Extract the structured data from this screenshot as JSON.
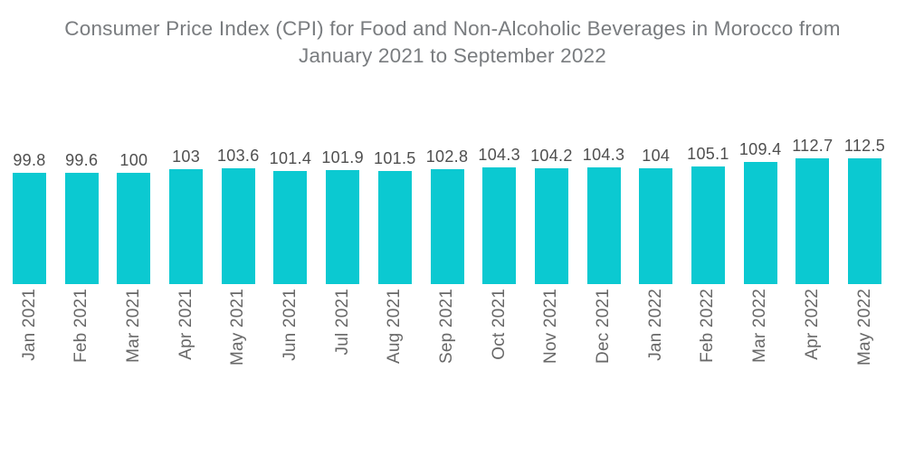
{
  "title": {
    "line1": "Consumer Price Index (CPI) for Food and Non-Alcoholic Beverages in Morocco from",
    "line2": "January 2021 to September 2022"
  },
  "colors": {
    "bar": "#0bc9d1",
    "title_text": "#797c7f",
    "value_label": "#4f4f4f",
    "month_label": "#686868",
    "background": "#ffffff"
  },
  "chart_data": {
    "type": "bar",
    "title": "Consumer Price Index (CPI) for Food and Non-Alcoholic Beverages in Morocco from January 2021 to September 2022",
    "categories": [
      "Jan 2021",
      "Feb 2021",
      "Mar 2021",
      "Apr 2021",
      "May 2021",
      "Jun 2021",
      "Jul 2021",
      "Aug 2021",
      "Sep 2021",
      "Oct 2021",
      "Nov 2021",
      "Dec 2021",
      "Jan 2022",
      "Feb 2022",
      "Mar 2022",
      "Apr 2022",
      "May 2022"
    ],
    "values": [
      99.8,
      99.6,
      100,
      103,
      103.6,
      101.4,
      101.9,
      101.5,
      102.8,
      104.3,
      104.2,
      104.3,
      104,
      105.1,
      109.4,
      112.7,
      112.5
    ],
    "xlabel": "",
    "ylabel": "",
    "ylim": [
      0,
      120
    ],
    "grid": false,
    "legend": false,
    "value_labels_shown": true,
    "x_tick_rotation_degrees": 90
  }
}
